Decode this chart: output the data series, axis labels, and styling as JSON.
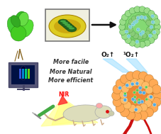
{
  "bg_color": "#ffffff",
  "text_lines": [
    "More facile",
    "More Natural",
    "More efficient"
  ],
  "text_color": "#333333",
  "nir_color": "#ff0000",
  "nir_text": "NIR",
  "o2_text": "O₂↑",
  "singlet_o2_text": "¹O₂↑",
  "arrow_color": "#111111",
  "beam_yellow": "#ffff99",
  "beam_blue": "#99ddff",
  "leaf_color": "#33bb22",
  "leaf_dark": "#227711",
  "leaf_mid": "#44cc33",
  "thylakoid_yellow": "#ddcc22",
  "thylakoid_green": "#226622",
  "thylakoid_bg": "#f0f0e0",
  "nanoparticle_green": "#77cc66",
  "nanoparticle_bump": "#99dd88",
  "nanoparticle_dot_blue": "#55aaee",
  "nanoparticle_dot_cyan": "#88ddcc",
  "tumor_orange": "#ee8833",
  "tumor_bump": "#ffaa55",
  "tumor_dot_blue": "#55aadd",
  "blood_red": "#cc1111",
  "monitor_frame": "#222244",
  "monitor_screen": "#001144",
  "monitor_scan1": "#4466ff",
  "monitor_scan2": "#00aaff",
  "monitor_scan3": "#00ff88",
  "monitor_scan4": "#88ff00",
  "syringe_color": "#44aa44",
  "mouse_body": "#ddddbb",
  "mouse_outline": "#aaaaaa",
  "mouse_pink": "#ffaaaa"
}
